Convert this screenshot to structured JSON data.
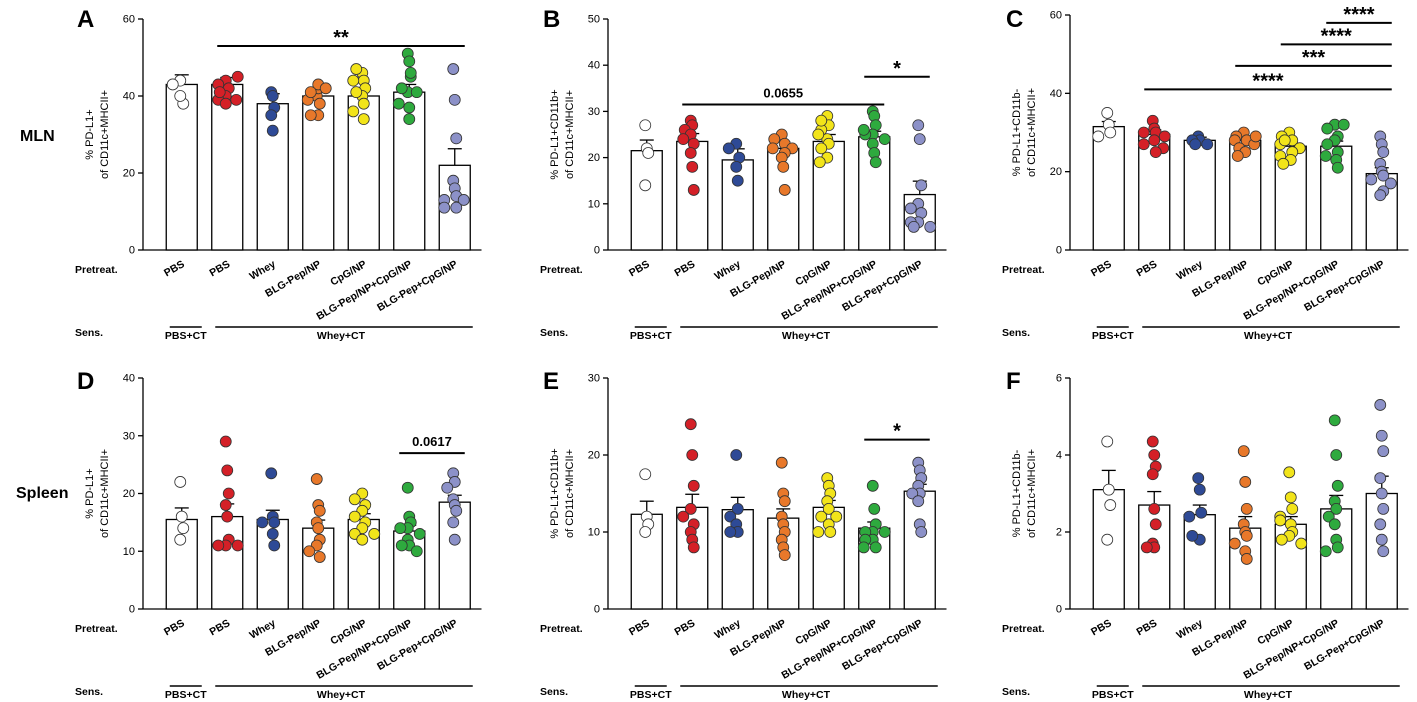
{
  "figure": {
    "row_labels": [
      "MLN",
      "Spleen"
    ],
    "pretreat_label": "Pretreat.",
    "sens_label": "Sens.",
    "sens_groups": [
      "PBS+CT",
      "Whey+CT"
    ]
  },
  "chart_data": [
    {
      "type": "bar",
      "panel": "A",
      "ylabel": [
        "% PD-L1+",
        "of CD11c+MHCII+"
      ],
      "ylim": [
        0,
        60
      ],
      "yticks": [
        0,
        20,
        40,
        60
      ],
      "categories": [
        "PBS",
        "PBS",
        "Whey",
        "BLG-Pep/NP",
        "CpG/NP",
        "BLG-Pep/NP+CpG/NP",
        "BLG-Pep+CpG/NP"
      ],
      "colors": [
        "#ffffff",
        "#d42027",
        "#2e4a96",
        "#e8782a",
        "#f2e41a",
        "#2eaa3e",
        "#8c91c8"
      ],
      "means": [
        43,
        43,
        38,
        40,
        40,
        41,
        22
      ],
      "sems": [
        2.5,
        1.8,
        2.6,
        1.5,
        1.7,
        2.0,
        4.3
      ],
      "points": [
        [
          44,
          43,
          38,
          40
        ],
        [
          44,
          43,
          42,
          40,
          39,
          41,
          38,
          39,
          45
        ],
        [
          41,
          40,
          37,
          35,
          31
        ],
        [
          40,
          42,
          38,
          39,
          43,
          41,
          42,
          35,
          35
        ],
        [
          46,
          44,
          42,
          40,
          38,
          41,
          36,
          34,
          47,
          44
        ],
        [
          51,
          49,
          45,
          41,
          37,
          42,
          38,
          34,
          46,
          41
        ],
        [
          47,
          39,
          29,
          18,
          16,
          14,
          13,
          13,
          11,
          11
        ]
      ],
      "annotations": [
        {
          "text": "**",
          "from": 1,
          "to": 6,
          "y": 53
        }
      ]
    },
    {
      "type": "bar",
      "panel": "B",
      "ylabel": [
        "% PD-L1+CD11b+",
        "of CD11c+MHCII+"
      ],
      "ylim": [
        0,
        50
      ],
      "yticks": [
        0,
        10,
        20,
        30,
        40,
        50
      ],
      "categories": [
        "PBS",
        "PBS",
        "Whey",
        "BLG-Pep/NP",
        "CpG/NP",
        "BLG-Pep/NP+CpG/NP",
        "BLG-Pep+CpG/NP"
      ],
      "colors": [
        "#ffffff",
        "#d42027",
        "#2e4a96",
        "#e8782a",
        "#f2e41a",
        "#2eaa3e",
        "#8c91c8"
      ],
      "means": [
        21.5,
        23.5,
        19.5,
        22,
        23.5,
        24.5,
        12
      ],
      "sems": [
        2.3,
        1.7,
        2.4,
        1.4,
        1.5,
        1.2,
        2.9
      ],
      "points": [
        [
          27,
          22,
          21,
          14
        ],
        [
          28,
          27,
          26,
          25,
          24,
          23,
          21,
          18,
          13
        ],
        [
          23,
          22,
          20,
          18,
          15
        ],
        [
          25,
          24,
          23,
          22,
          22,
          21,
          20,
          18,
          13
        ],
        [
          29,
          27,
          26,
          24,
          23,
          22,
          20,
          19,
          28,
          25
        ],
        [
          30,
          29,
          27,
          25,
          25,
          24,
          23,
          21,
          19,
          26
        ],
        [
          27,
          24,
          14,
          10,
          9,
          8,
          6,
          6,
          5,
          5
        ]
      ],
      "annotations": [
        {
          "text": "0.0655",
          "from": 1,
          "to": 5,
          "y": 31.5,
          "bold": true
        },
        {
          "text": "*",
          "from": 5,
          "to": 6,
          "y": 37.5
        }
      ]
    },
    {
      "type": "bar",
      "panel": "C",
      "ylabel": [
        "% PD-L1+CD11b-",
        "of CD11c+MHCII+"
      ],
      "ylim": [
        0,
        60
      ],
      "yticks": [
        0,
        20,
        40,
        60
      ],
      "categories": [
        "PBS",
        "PBS",
        "Whey",
        "BLG-Pep/NP",
        "CpG/NP",
        "BLG-Pep/NP+CpG/NP",
        "BLG-Pep+CpG/NP"
      ],
      "colors": [
        "#ffffff",
        "#d42027",
        "#2e4a96",
        "#e8782a",
        "#f2e41a",
        "#2eaa3e",
        "#8c91c8"
      ],
      "means": [
        31.5,
        29.5,
        28,
        28,
        26.5,
        26.5,
        19.5
      ],
      "sems": [
        1.3,
        1.2,
        0.8,
        1.0,
        1.1,
        1.3,
        1.5
      ],
      "points": [
        [
          35,
          32,
          30,
          29
        ],
        [
          33,
          31,
          30,
          30,
          28,
          29,
          27,
          26,
          25
        ],
        [
          29,
          28,
          28,
          27,
          27
        ],
        [
          30,
          29,
          28,
          28,
          27,
          29,
          26,
          25,
          24
        ],
        [
          30,
          29,
          28,
          27,
          26,
          25,
          24,
          23,
          22,
          28
        ],
        [
          32,
          31,
          29,
          28,
          27,
          25,
          24,
          23,
          21,
          32
        ],
        [
          29,
          27,
          25,
          22,
          20,
          19,
          18,
          17,
          15,
          14
        ]
      ],
      "annotations": [
        {
          "text": "****",
          "from": 1,
          "to": 6,
          "y": 41
        },
        {
          "text": "***",
          "from": 3,
          "to": 6,
          "y": 47
        },
        {
          "text": "****",
          "from": 4,
          "to": 6,
          "y": 52.5
        },
        {
          "text": "****",
          "from": 5,
          "to": 6,
          "y": 58
        }
      ]
    },
    {
      "type": "bar",
      "panel": "D",
      "ylabel": [
        "% PD-L1+",
        "of CD11c+MHCII+"
      ],
      "ylim": [
        0,
        40
      ],
      "yticks": [
        0,
        10,
        20,
        30,
        40
      ],
      "categories": [
        "PBS",
        "PBS",
        "Whey",
        "BLG-Pep/NP",
        "CpG/NP",
        "BLG-Pep/NP+CpG/NP",
        "BLG-Pep+CpG/NP"
      ],
      "colors": [
        "#ffffff",
        "#d42027",
        "#2e4a96",
        "#e8782a",
        "#f2e41a",
        "#2eaa3e",
        "#8c91c8"
      ],
      "means": [
        15.5,
        16,
        15.5,
        14,
        15.5,
        13.5,
        18.5
      ],
      "sems": [
        2.0,
        2.2,
        1.6,
        1.4,
        1.0,
        1.0,
        1.2
      ],
      "points": [
        [
          22,
          16,
          14,
          12
        ],
        [
          29,
          24,
          20,
          18,
          16,
          12,
          11,
          11,
          11
        ],
        [
          23.5,
          16,
          15,
          15,
          13,
          11
        ],
        [
          22.5,
          18,
          17,
          15,
          14,
          12,
          11,
          10,
          9
        ],
        [
          20,
          19,
          18,
          17,
          16,
          15,
          14,
          13,
          13,
          12
        ],
        [
          21,
          16,
          15,
          14,
          14,
          13,
          12,
          11,
          11,
          10
        ],
        [
          23.5,
          22,
          21,
          19,
          18,
          17,
          15,
          12
        ]
      ],
      "annotations": [
        {
          "text": "0.0617",
          "from": 5,
          "to": 6,
          "y": 27,
          "bold": true
        }
      ]
    },
    {
      "type": "bar",
      "panel": "E",
      "ylabel": [
        "% PD-L1+CD11b+",
        "of CD11c+MHCII+"
      ],
      "ylim": [
        0,
        30
      ],
      "yticks": [
        0,
        10,
        20,
        30
      ],
      "categories": [
        "PBS",
        "PBS",
        "Whey",
        "BLG-Pep/NP",
        "CpG/NP",
        "BLG-Pep/NP+CpG/NP",
        "BLG-Pep+CpG/NP"
      ],
      "colors": [
        "#ffffff",
        "#d42027",
        "#2e4a96",
        "#e8782a",
        "#f2e41a",
        "#2eaa3e",
        "#8c91c8"
      ],
      "means": [
        12.3,
        13.2,
        12.9,
        11.8,
        13.2,
        10.5,
        15.3
      ],
      "sems": [
        1.7,
        1.7,
        1.6,
        1.2,
        0.9,
        0.8,
        0.9
      ],
      "points": [
        [
          17.5,
          12,
          11,
          10
        ],
        [
          24,
          20,
          16,
          13,
          12,
          11,
          10,
          9,
          8
        ],
        [
          20,
          13,
          12,
          11,
          10,
          10
        ],
        [
          19,
          15,
          14,
          12,
          11,
          10,
          9,
          8,
          7
        ],
        [
          17,
          16,
          15,
          14,
          13,
          12,
          12,
          11,
          10,
          10
        ],
        [
          16,
          13,
          11,
          10,
          10,
          10,
          9,
          9,
          8,
          8
        ],
        [
          19,
          18,
          17,
          16,
          15,
          15,
          14,
          11,
          10
        ]
      ],
      "annotations": [
        {
          "text": "*",
          "from": 5,
          "to": 6,
          "y": 22
        }
      ]
    },
    {
      "type": "bar",
      "panel": "F",
      "ylabel": [
        "% PD-L1+CD11b-",
        "of CD11c+MHCII+"
      ],
      "ylim": [
        0,
        6
      ],
      "yticks": [
        0,
        2,
        4,
        6
      ],
      "categories": [
        "PBS",
        "PBS",
        "Whey",
        "BLG-Pep/NP",
        "CpG/NP",
        "BLG-Pep/NP+CpG/NP",
        "BLG-Pep+CpG/NP"
      ],
      "colors": [
        "#ffffff",
        "#d42027",
        "#2e4a96",
        "#e8782a",
        "#f2e41a",
        "#2eaa3e",
        "#8c91c8"
      ],
      "means": [
        3.1,
        2.7,
        2.45,
        2.1,
        2.2,
        2.6,
        3.0
      ],
      "sems": [
        0.5,
        0.35,
        0.25,
        0.3,
        0.2,
        0.35,
        0.45
      ],
      "points": [
        [
          4.35,
          3.1,
          2.7,
          1.8
        ],
        [
          4.35,
          4.0,
          3.7,
          3.5,
          2.6,
          2.2,
          1.7,
          1.6,
          1.6
        ],
        [
          3.4,
          3.1,
          2.5,
          2.4,
          1.8,
          1.9
        ],
        [
          4.1,
          3.3,
          2.6,
          2.2,
          2.0,
          1.9,
          1.7,
          1.5,
          1.3
        ],
        [
          3.55,
          2.9,
          2.6,
          2.4,
          2.2,
          2.0,
          1.9,
          1.8,
          1.7,
          2.3
        ],
        [
          4.9,
          4.0,
          3.2,
          2.8,
          2.6,
          2.4,
          2.2,
          1.8,
          1.6,
          1.5
        ],
        [
          5.3,
          4.5,
          4.1,
          3.4,
          3.0,
          2.6,
          2.2,
          1.8,
          1.5
        ]
      ],
      "annotations": []
    }
  ]
}
